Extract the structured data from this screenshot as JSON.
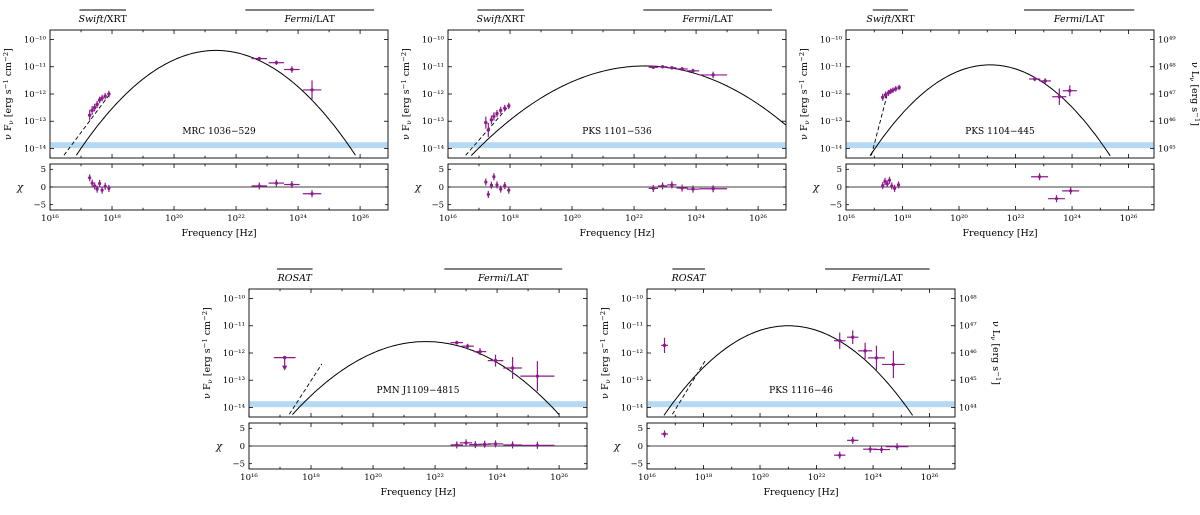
{
  "figure": {
    "x_label": "Frequency [Hz]",
    "y_label_parts": [
      {
        "t": "ν F"
      },
      {
        "t": "ν",
        "sub": true
      },
      {
        "t": " [erg s"
      },
      {
        "t": "−1",
        "sup": true
      },
      {
        "t": " cm"
      },
      {
        "t": "−2",
        "sup": true
      },
      {
        "t": "]"
      }
    ],
    "right_label_parts": [
      {
        "t": "ν L"
      },
      {
        "t": "ν",
        "sub": true
      },
      {
        "t": " [erg s"
      },
      {
        "t": "−1",
        "sup": true
      },
      {
        "t": "]"
      }
    ],
    "chi_label": "χ",
    "data_color": "#8c1a8c",
    "model_color": "#000000",
    "band_color": "#b5d9f2"
  },
  "chart_data": [
    {
      "type": "scatter+model",
      "name": "MRC 1036−529",
      "x_unit": "log10 Hz",
      "y_unit": "log10 erg s^-1 cm^-2",
      "x_axis": {
        "scale": "log",
        "range": [
          16,
          26.9
        ],
        "ticks": [
          16,
          18,
          20,
          22,
          24,
          26
        ]
      },
      "y_axis": {
        "scale": "log",
        "range": [
          -14.35,
          -9.65
        ],
        "ticks": [
          -10,
          -11,
          -12,
          -13,
          -14
        ]
      },
      "right_axis": null,
      "chi_axis": {
        "range": [
          -6.5,
          6.5
        ],
        "ticks": [
          5,
          0,
          -5
        ]
      },
      "instruments": [
        {
          "parts": [
            {
              "t": "Swift",
              "i": true
            },
            {
              "t": "/XRT"
            }
          ],
          "span": [
            16.95,
            18.45
          ]
        },
        {
          "parts": [
            {
              "t": "Fermi",
              "i": true
            },
            {
              "t": "/LAT"
            }
          ],
          "span": [
            22.3,
            26.45
          ]
        }
      ],
      "band": {
        "y": -13.88
      },
      "model": {
        "peak": [
          21.35,
          -10.4
        ],
        "curvature": 0.19,
        "dashed": [
          [
            16.45,
            -14.25
          ],
          [
            17.95,
            -11.97
          ]
        ]
      },
      "xray_points": [
        [
          17.28,
          -12.78,
          0.2
        ],
        [
          17.36,
          -12.6,
          0.16
        ],
        [
          17.44,
          -12.5,
          0.14
        ],
        [
          17.52,
          -12.38,
          0.13
        ],
        [
          17.6,
          -12.22,
          0.12
        ],
        [
          17.68,
          -12.15,
          0.12
        ],
        [
          17.78,
          -12.08,
          0.12
        ],
        [
          17.9,
          -12.0,
          0.12
        ]
      ],
      "lat_points": [
        [
          22.75,
          -10.7,
          0.06,
          0.25
        ],
        [
          23.3,
          -10.85,
          0.08,
          0.25
        ],
        [
          23.8,
          -11.1,
          0.12,
          0.25
        ],
        [
          24.45,
          -11.85,
          0.35,
          0.3
        ]
      ],
      "upper_limits": [],
      "chi_points": [
        [
          17.28,
          2.6,
          0.03
        ],
        [
          17.36,
          1.1,
          0.03
        ],
        [
          17.44,
          0.3,
          0.03
        ],
        [
          17.52,
          -0.6,
          0.03
        ],
        [
          17.6,
          1.0,
          0.03
        ],
        [
          17.68,
          -0.9,
          0.03
        ],
        [
          17.78,
          0.2,
          0.03
        ],
        [
          17.9,
          -0.4,
          0.03
        ],
        [
          22.75,
          0.3,
          0.25
        ],
        [
          23.3,
          1.1,
          0.25
        ],
        [
          23.8,
          0.7,
          0.25
        ],
        [
          24.45,
          -1.9,
          0.3
        ]
      ]
    },
    {
      "type": "scatter+model",
      "name": "PKS 1101−536",
      "x_unit": "log10 Hz",
      "y_unit": "log10 erg s^-1 cm^-2",
      "x_axis": {
        "scale": "log",
        "range": [
          16,
          26.9
        ],
        "ticks": [
          16,
          18,
          20,
          22,
          24,
          26
        ]
      },
      "y_axis": {
        "scale": "log",
        "range": [
          -14.35,
          -9.65
        ],
        "ticks": [
          -10,
          -11,
          -12,
          -13,
          -14
        ]
      },
      "right_axis": null,
      "chi_axis": {
        "range": [
          -6.5,
          6.5
        ],
        "ticks": [
          5,
          0,
          -5
        ]
      },
      "instruments": [
        {
          "parts": [
            {
              "t": "Swift",
              "i": true
            },
            {
              "t": "/XRT"
            }
          ],
          "span": [
            16.95,
            18.45
          ]
        },
        {
          "parts": [
            {
              "t": "Fermi",
              "i": true
            },
            {
              "t": "/LAT"
            }
          ],
          "span": [
            22.3,
            26.45
          ]
        }
      ],
      "band": {
        "y": -13.88
      },
      "model": {
        "peak": [
          22.35,
          -10.97
        ],
        "curvature": 0.105,
        "dashed": [
          [
            16.57,
            -14.25
          ],
          [
            18.0,
            -12.39
          ]
        ]
      },
      "xray_points": [
        [
          17.22,
          -13.05,
          0.22
        ],
        [
          17.3,
          -13.32,
          0.26
        ],
        [
          17.4,
          -12.95,
          0.16
        ],
        [
          17.48,
          -12.82,
          0.15
        ],
        [
          17.58,
          -12.72,
          0.13
        ],
        [
          17.7,
          -12.6,
          0.13
        ],
        [
          17.83,
          -12.52,
          0.12
        ],
        [
          17.96,
          -12.44,
          0.12
        ]
      ],
      "lat_points": [
        [
          22.62,
          -11.02,
          0.05,
          0.15
        ],
        [
          22.92,
          -11.0,
          0.05,
          0.15
        ],
        [
          23.22,
          -11.04,
          0.06,
          0.15
        ],
        [
          23.55,
          -11.08,
          0.07,
          0.18
        ],
        [
          23.9,
          -11.15,
          0.08,
          0.2
        ],
        [
          24.55,
          -11.3,
          0.12,
          0.45
        ]
      ],
      "upper_limits": [],
      "chi_points": [
        [
          17.22,
          1.4,
          0.03
        ],
        [
          17.3,
          -2.1,
          0.03
        ],
        [
          17.4,
          0.5,
          0.03
        ],
        [
          17.48,
          2.9,
          0.03
        ],
        [
          17.58,
          0.6,
          0.03
        ],
        [
          17.7,
          -0.6,
          0.03
        ],
        [
          17.83,
          0.4,
          0.03
        ],
        [
          17.96,
          -0.9,
          0.03
        ],
        [
          22.62,
          -0.4,
          0.15
        ],
        [
          22.92,
          0.3,
          0.15
        ],
        [
          23.22,
          0.6,
          0.15
        ],
        [
          23.55,
          -0.3,
          0.18
        ],
        [
          23.9,
          -0.6,
          0.2
        ],
        [
          24.55,
          -0.5,
          0.45
        ]
      ]
    },
    {
      "type": "scatter+model",
      "name": "PKS 1104−445",
      "x_unit": "log10 Hz",
      "y_unit": "log10 erg s^-1 cm^-2",
      "x_axis": {
        "scale": "log",
        "range": [
          16,
          26.9
        ],
        "ticks": [
          16,
          18,
          20,
          22,
          24,
          26
        ]
      },
      "y_axis": {
        "scale": "log",
        "range": [
          -14.35,
          -9.65
        ],
        "ticks": [
          -10,
          -11,
          -12,
          -13,
          -14
        ]
      },
      "right_axis": {
        "unit": "log10 erg s^-1",
        "ticks": [
          49,
          48,
          47,
          46,
          45
        ]
      },
      "chi_axis": {
        "range": [
          -6.5,
          6.5
        ],
        "ticks": [
          5,
          0,
          -5
        ]
      },
      "instruments": [
        {
          "parts": [
            {
              "t": "Swift",
              "i": true
            },
            {
              "t": "/XRT"
            }
          ],
          "span": [
            16.95,
            18.2
          ]
        },
        {
          "parts": [
            {
              "t": "Fermi",
              "i": true
            },
            {
              "t": "/LAT"
            }
          ],
          "span": [
            22.3,
            26.2
          ]
        }
      ],
      "band": {
        "y": -13.88
      },
      "model": {
        "peak": [
          21.1,
          -10.93
        ],
        "curvature": 0.185,
        "dashed": [
          [
            16.9,
            -14.25
          ],
          [
            17.45,
            -12.05
          ]
        ]
      },
      "xray_points": [
        [
          17.3,
          -12.12,
          0.13
        ],
        [
          17.4,
          -12.03,
          0.12
        ],
        [
          17.5,
          -11.96,
          0.11
        ],
        [
          17.58,
          -11.9,
          0.1
        ],
        [
          17.66,
          -11.86,
          0.1
        ],
        [
          17.76,
          -11.81,
          0.1
        ],
        [
          17.88,
          -11.76,
          0.1
        ]
      ],
      "lat_points": [
        [
          22.68,
          -11.45,
          0.08,
          0.2
        ],
        [
          23.05,
          -11.52,
          0.1,
          0.2
        ],
        [
          23.55,
          -12.1,
          0.3,
          0.25
        ],
        [
          23.92,
          -11.88,
          0.2,
          0.25
        ]
      ],
      "upper_limits": [],
      "chi_points": [
        [
          17.3,
          0.4,
          0.03
        ],
        [
          17.38,
          1.6,
          0.03
        ],
        [
          17.46,
          0.9,
          0.03
        ],
        [
          17.54,
          1.9,
          0.03
        ],
        [
          17.62,
          0.3,
          0.03
        ],
        [
          17.72,
          -0.4,
          0.03
        ],
        [
          17.86,
          0.6,
          0.03
        ],
        [
          22.85,
          2.9,
          0.3
        ],
        [
          23.45,
          -3.3,
          0.3
        ],
        [
          23.95,
          -1.1,
          0.3
        ]
      ]
    },
    {
      "type": "scatter+model",
      "name": "PMN J1109−4815",
      "x_unit": "log10 Hz",
      "y_unit": "log10 erg s^-1 cm^-2",
      "x_axis": {
        "scale": "log",
        "range": [
          16,
          26.9
        ],
        "ticks": [
          16,
          18,
          20,
          22,
          24,
          26
        ]
      },
      "y_axis": {
        "scale": "log",
        "range": [
          -14.35,
          -9.65
        ],
        "ticks": [
          -10,
          -11,
          -12,
          -13,
          -14
        ]
      },
      "right_axis": null,
      "chi_axis": {
        "range": [
          -6.5,
          6.5
        ],
        "ticks": [
          5,
          0,
          -5
        ]
      },
      "instruments": [
        {
          "parts": [
            {
              "t": "ROSAT",
              "i": true
            }
          ],
          "span": [
            16.9,
            18.05
          ]
        },
        {
          "parts": [
            {
              "t": "Fermi",
              "i": true
            },
            {
              "t": "/LAT"
            }
          ],
          "span": [
            22.3,
            26.1
          ]
        }
      ],
      "band": {
        "y": -13.88
      },
      "model": {
        "peak": [
          21.7,
          -11.58
        ],
        "curvature": 0.145,
        "dashed": [
          [
            17.3,
            -14.25
          ],
          [
            18.35,
            -12.4
          ]
        ]
      },
      "xray_points": [],
      "lat_points": [
        [
          22.7,
          -11.62,
          0.07,
          0.2
        ],
        [
          23.05,
          -11.75,
          0.09,
          0.2
        ],
        [
          23.45,
          -11.95,
          0.13,
          0.2
        ],
        [
          23.95,
          -12.28,
          0.22,
          0.25
        ],
        [
          24.5,
          -12.55,
          0.4,
          0.3
        ],
        [
          25.3,
          -12.85,
          0.55,
          0.55
        ]
      ],
      "upper_limits": [
        [
          17.15,
          -12.17,
          0.35
        ]
      ],
      "chi_points": [
        [
          22.7,
          0.3,
          0.2
        ],
        [
          23.0,
          0.9,
          0.2
        ],
        [
          23.3,
          0.4,
          0.2
        ],
        [
          23.6,
          0.5,
          0.2
        ],
        [
          23.95,
          0.6,
          0.25
        ],
        [
          24.5,
          0.3,
          0.3
        ],
        [
          25.3,
          0.2,
          0.55
        ]
      ]
    },
    {
      "type": "scatter+model",
      "name": "PKS 1116−46",
      "x_unit": "log10 Hz",
      "y_unit": "log10 erg s^-1 cm^-2",
      "x_axis": {
        "scale": "log",
        "range": [
          16,
          26.9
        ],
        "ticks": [
          16,
          18,
          20,
          22,
          24,
          26
        ]
      },
      "y_axis": {
        "scale": "log",
        "range": [
          -14.35,
          -9.65
        ],
        "ticks": [
          -10,
          -11,
          -12,
          -13,
          -14
        ]
      },
      "right_axis": {
        "unit": "log10 erg s^-1",
        "ticks": [
          48,
          47,
          46,
          45,
          44
        ]
      },
      "chi_axis": {
        "range": [
          -6.5,
          6.5
        ],
        "ticks": [
          5,
          0,
          -5
        ]
      },
      "instruments": [
        {
          "parts": [
            {
              "t": "ROSAT",
              "i": true
            }
          ],
          "span": [
            16.9,
            18.05
          ]
        },
        {
          "parts": [
            {
              "t": "Fermi",
              "i": true
            },
            {
              "t": "/LAT"
            }
          ],
          "span": [
            22.3,
            26.0
          ]
        }
      ],
      "band": {
        "y": -13.88
      },
      "model": {
        "peak": [
          21.0,
          -11.0
        ],
        "curvature": 0.17,
        "dashed": [
          [
            16.9,
            -14.25
          ],
          [
            18.05,
            -12.3
          ]
        ]
      },
      "xray_points": [
        [
          16.62,
          -11.72,
          0.28,
          0.12
        ]
      ],
      "lat_points": [
        [
          22.82,
          -11.55,
          0.3,
          0.2
        ],
        [
          23.28,
          -11.42,
          0.25,
          0.2
        ],
        [
          23.72,
          -11.92,
          0.3,
          0.25
        ],
        [
          24.12,
          -12.18,
          0.45,
          0.3
        ],
        [
          24.72,
          -12.42,
          0.5,
          0.4
        ]
      ],
      "upper_limits": [],
      "chi_points": [
        [
          16.62,
          3.4,
          0.12
        ],
        [
          22.82,
          -2.6,
          0.2
        ],
        [
          23.28,
          1.6,
          0.2
        ],
        [
          23.9,
          -0.9,
          0.25
        ],
        [
          24.3,
          -1.0,
          0.3
        ],
        [
          24.85,
          -0.2,
          0.4
        ]
      ]
    }
  ]
}
